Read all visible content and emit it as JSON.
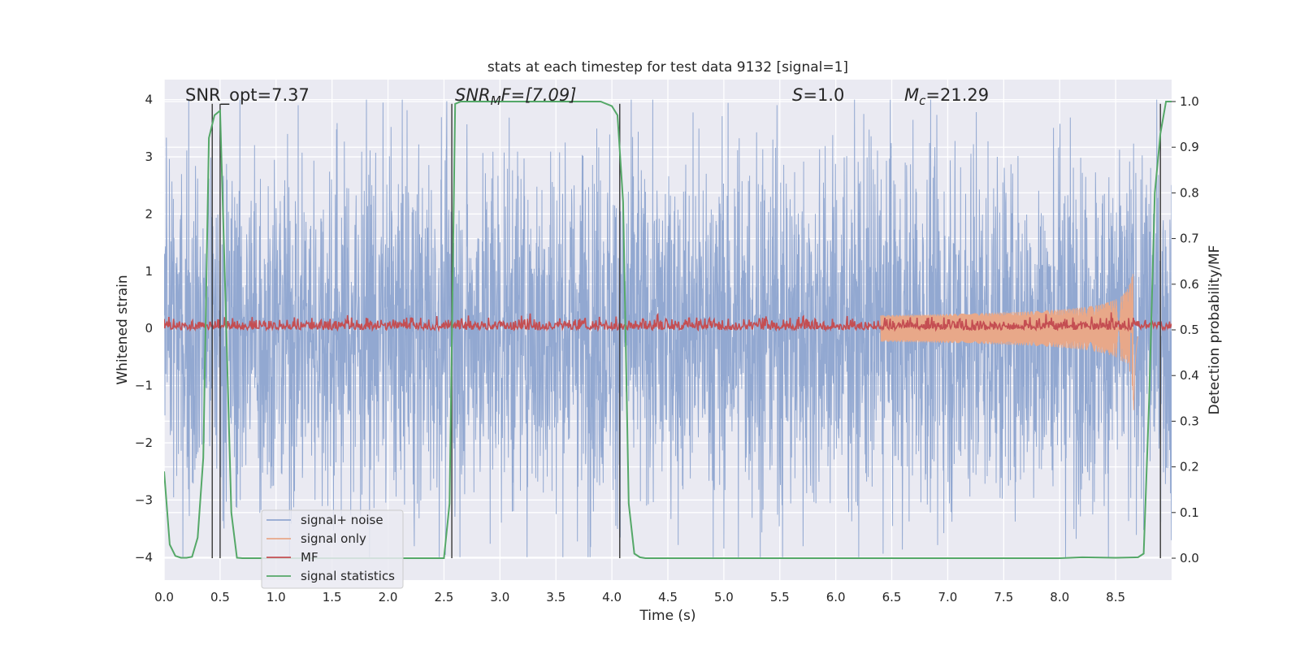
{
  "chart_data": {
    "type": "line",
    "title": "stats at each timestep for test data 9132 [signal=1]",
    "xlabel": "Time (s)",
    "ylabel": "Whitened strain",
    "y2label": "Detection probability/MF",
    "xlim": [
      0,
      9.0
    ],
    "ylim": [
      -4.4,
      4.35
    ],
    "y2lim": [
      -0.048,
      1.048
    ],
    "x_ticks": [
      0.0,
      0.5,
      1.0,
      1.5,
      2.0,
      2.5,
      3.0,
      3.5,
      4.0,
      4.5,
      5.0,
      5.5,
      6.0,
      6.5,
      7.0,
      7.5,
      8.0,
      8.5
    ],
    "x_tick_labels": [
      "0.0",
      "0.5",
      "1.0",
      "1.5",
      "2.0",
      "2.5",
      "3.0",
      "3.5",
      "4.0",
      "4.5",
      "5.0",
      "5.5",
      "6.0",
      "6.5",
      "7.0",
      "7.5",
      "8.0",
      "8.5"
    ],
    "y_ticks": [
      4,
      3,
      2,
      1,
      0,
      -1,
      -2,
      -3,
      -4
    ],
    "y_tick_labels": [
      "4",
      "3",
      "2",
      "1",
      "0",
      "−1",
      "−2",
      "−3",
      "−4"
    ],
    "y2_ticks": [
      1.0,
      0.9,
      0.8,
      0.7,
      0.6,
      0.5,
      0.4,
      0.3,
      0.2,
      0.1,
      0.0
    ],
    "y2_tick_labels": [
      "1.0",
      "0.9",
      "0.8",
      "0.7",
      "0.6",
      "0.5",
      "0.4",
      "0.3",
      "0.2",
      "0.1",
      "0.0"
    ],
    "grid": true,
    "legend_position": "lower-left",
    "annotations": {
      "snr_opt": "SNR_opt=7.37",
      "snr_mf_prefix": "SNR",
      "snr_mf_sub": "M",
      "snr_mf_suffix": "F=[7.09]",
      "s_sym": "S",
      "s_value": "=1.0",
      "mc_sym": "M",
      "mc_sub": "c",
      "mc_value": "=21.29"
    },
    "detection_markers_s": [
      0.43,
      0.5,
      2.57,
      4.07,
      8.9
    ],
    "series": [
      {
        "name": "signal+ noise",
        "color": "#92a8d1",
        "kind": "noise",
        "x_range": [
          0,
          9.0
        ],
        "amplitude_range": [
          -4.0,
          4.0
        ]
      },
      {
        "name": "signal only",
        "color": "#e8a889",
        "kind": "chirp",
        "peak_time_s": 8.66,
        "peak_amplitude": 1.55
      },
      {
        "name": "MF",
        "color": "#c44e52",
        "kind": "mf",
        "axis": "right",
        "baseline": 0.5,
        "range": [
          0.5,
          0.58
        ]
      },
      {
        "name": "signal statistics",
        "color": "#55a868",
        "axis": "right",
        "x": [
          0.0,
          0.05,
          0.1,
          0.15,
          0.2,
          0.25,
          0.3,
          0.35,
          0.4,
          0.45,
          0.5,
          0.55,
          0.6,
          0.65,
          0.7,
          1.0,
          1.5,
          2.0,
          2.5,
          2.55,
          2.6,
          2.65,
          2.7,
          3.0,
          3.5,
          3.9,
          4.0,
          4.05,
          4.1,
          4.15,
          4.2,
          4.25,
          4.3,
          4.5,
          5.0,
          6.0,
          7.0,
          7.5,
          8.0,
          8.2,
          8.5,
          8.7,
          8.75,
          8.8,
          8.85,
          8.9,
          8.95,
          9.0
        ],
        "y": [
          0.19,
          0.03,
          0.005,
          0.001,
          0.001,
          0.003,
          0.045,
          0.22,
          0.92,
          0.97,
          0.98,
          0.55,
          0.1,
          0.001,
          0.0,
          0.0,
          0.0,
          0.0,
          0.0,
          0.12,
          0.995,
          1.0,
          1.0,
          1.0,
          1.0,
          1.0,
          0.99,
          0.97,
          0.78,
          0.12,
          0.01,
          0.002,
          0.0,
          0.0,
          0.0,
          0.0,
          0.0,
          0.0,
          0.0,
          0.002,
          0.001,
          0.002,
          0.01,
          0.35,
          0.8,
          0.93,
          1.0,
          1.0
        ]
      }
    ]
  }
}
